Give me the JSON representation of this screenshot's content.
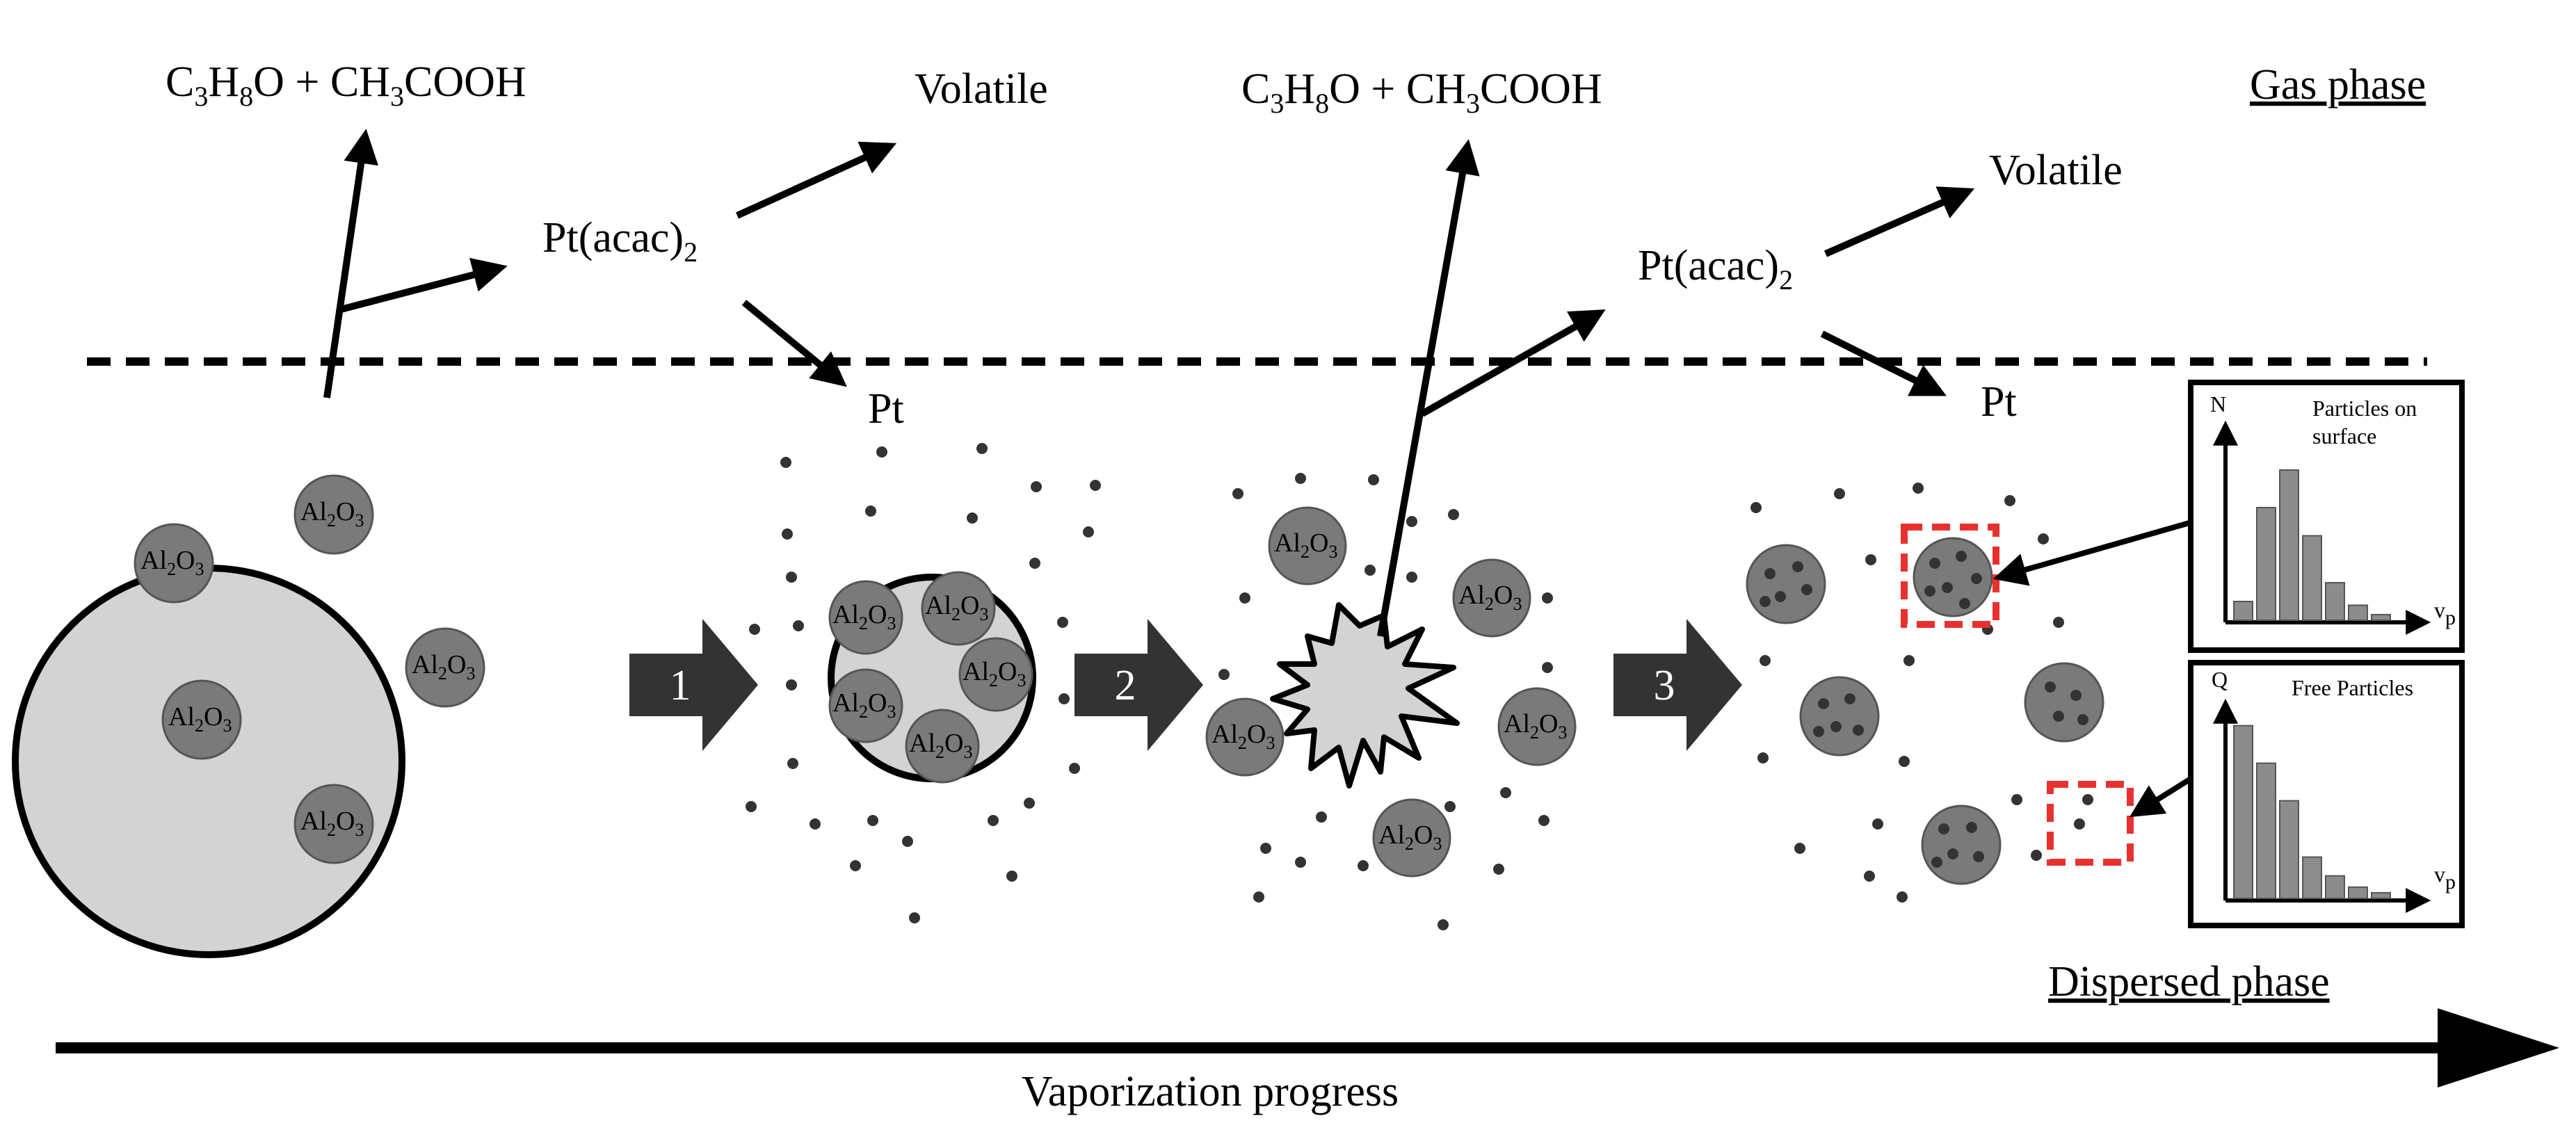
{
  "labels": {
    "gas_phase": "Gas phase",
    "dispersed_phase": "Dispersed phase",
    "progress": "Vaporization progress",
    "volatile": "Volatile",
    "pt": "Pt"
  },
  "formulas": {
    "solvent_products": [
      {
        "text": "C"
      },
      {
        "text": "3",
        "sub": true
      },
      {
        "text": "H"
      },
      {
        "text": "8",
        "sub": true
      },
      {
        "text": "O + CH"
      },
      {
        "text": "3",
        "sub": true
      },
      {
        "text": "COOH"
      }
    ],
    "precursor": [
      {
        "text": "Pt(acac)"
      },
      {
        "text": "2",
        "sub": true
      }
    ],
    "alumina": [
      {
        "text": "Al"
      },
      {
        "text": "2",
        "sub": true
      },
      {
        "text": "O"
      },
      {
        "text": "3",
        "sub": true
      }
    ]
  },
  "steps": [
    "1",
    "2",
    "3"
  ],
  "insets": {
    "surface": {
      "y_label": "N",
      "title_line1": "Particles on",
      "title_line2": "surface",
      "x_label": "v",
      "x_sub": "p",
      "bars": [
        0.1,
        0.6,
        0.8,
        0.45,
        0.2,
        0.08,
        0.03
      ]
    },
    "free": {
      "y_label": "Q",
      "title": "Free Particles",
      "x_label": "v",
      "x_sub": "p",
      "bars": [
        0.92,
        0.72,
        0.52,
        0.22,
        0.12,
        0.06,
        0.03
      ]
    }
  },
  "colors": {
    "droplet_fill": "#d3d3d3",
    "particle_fill": "#7a7a7a",
    "dot_fill": "#333333",
    "highlight_box": "#e8312f",
    "step_arrow": "#333333",
    "bar_fill": "#8c8c8c"
  }
}
